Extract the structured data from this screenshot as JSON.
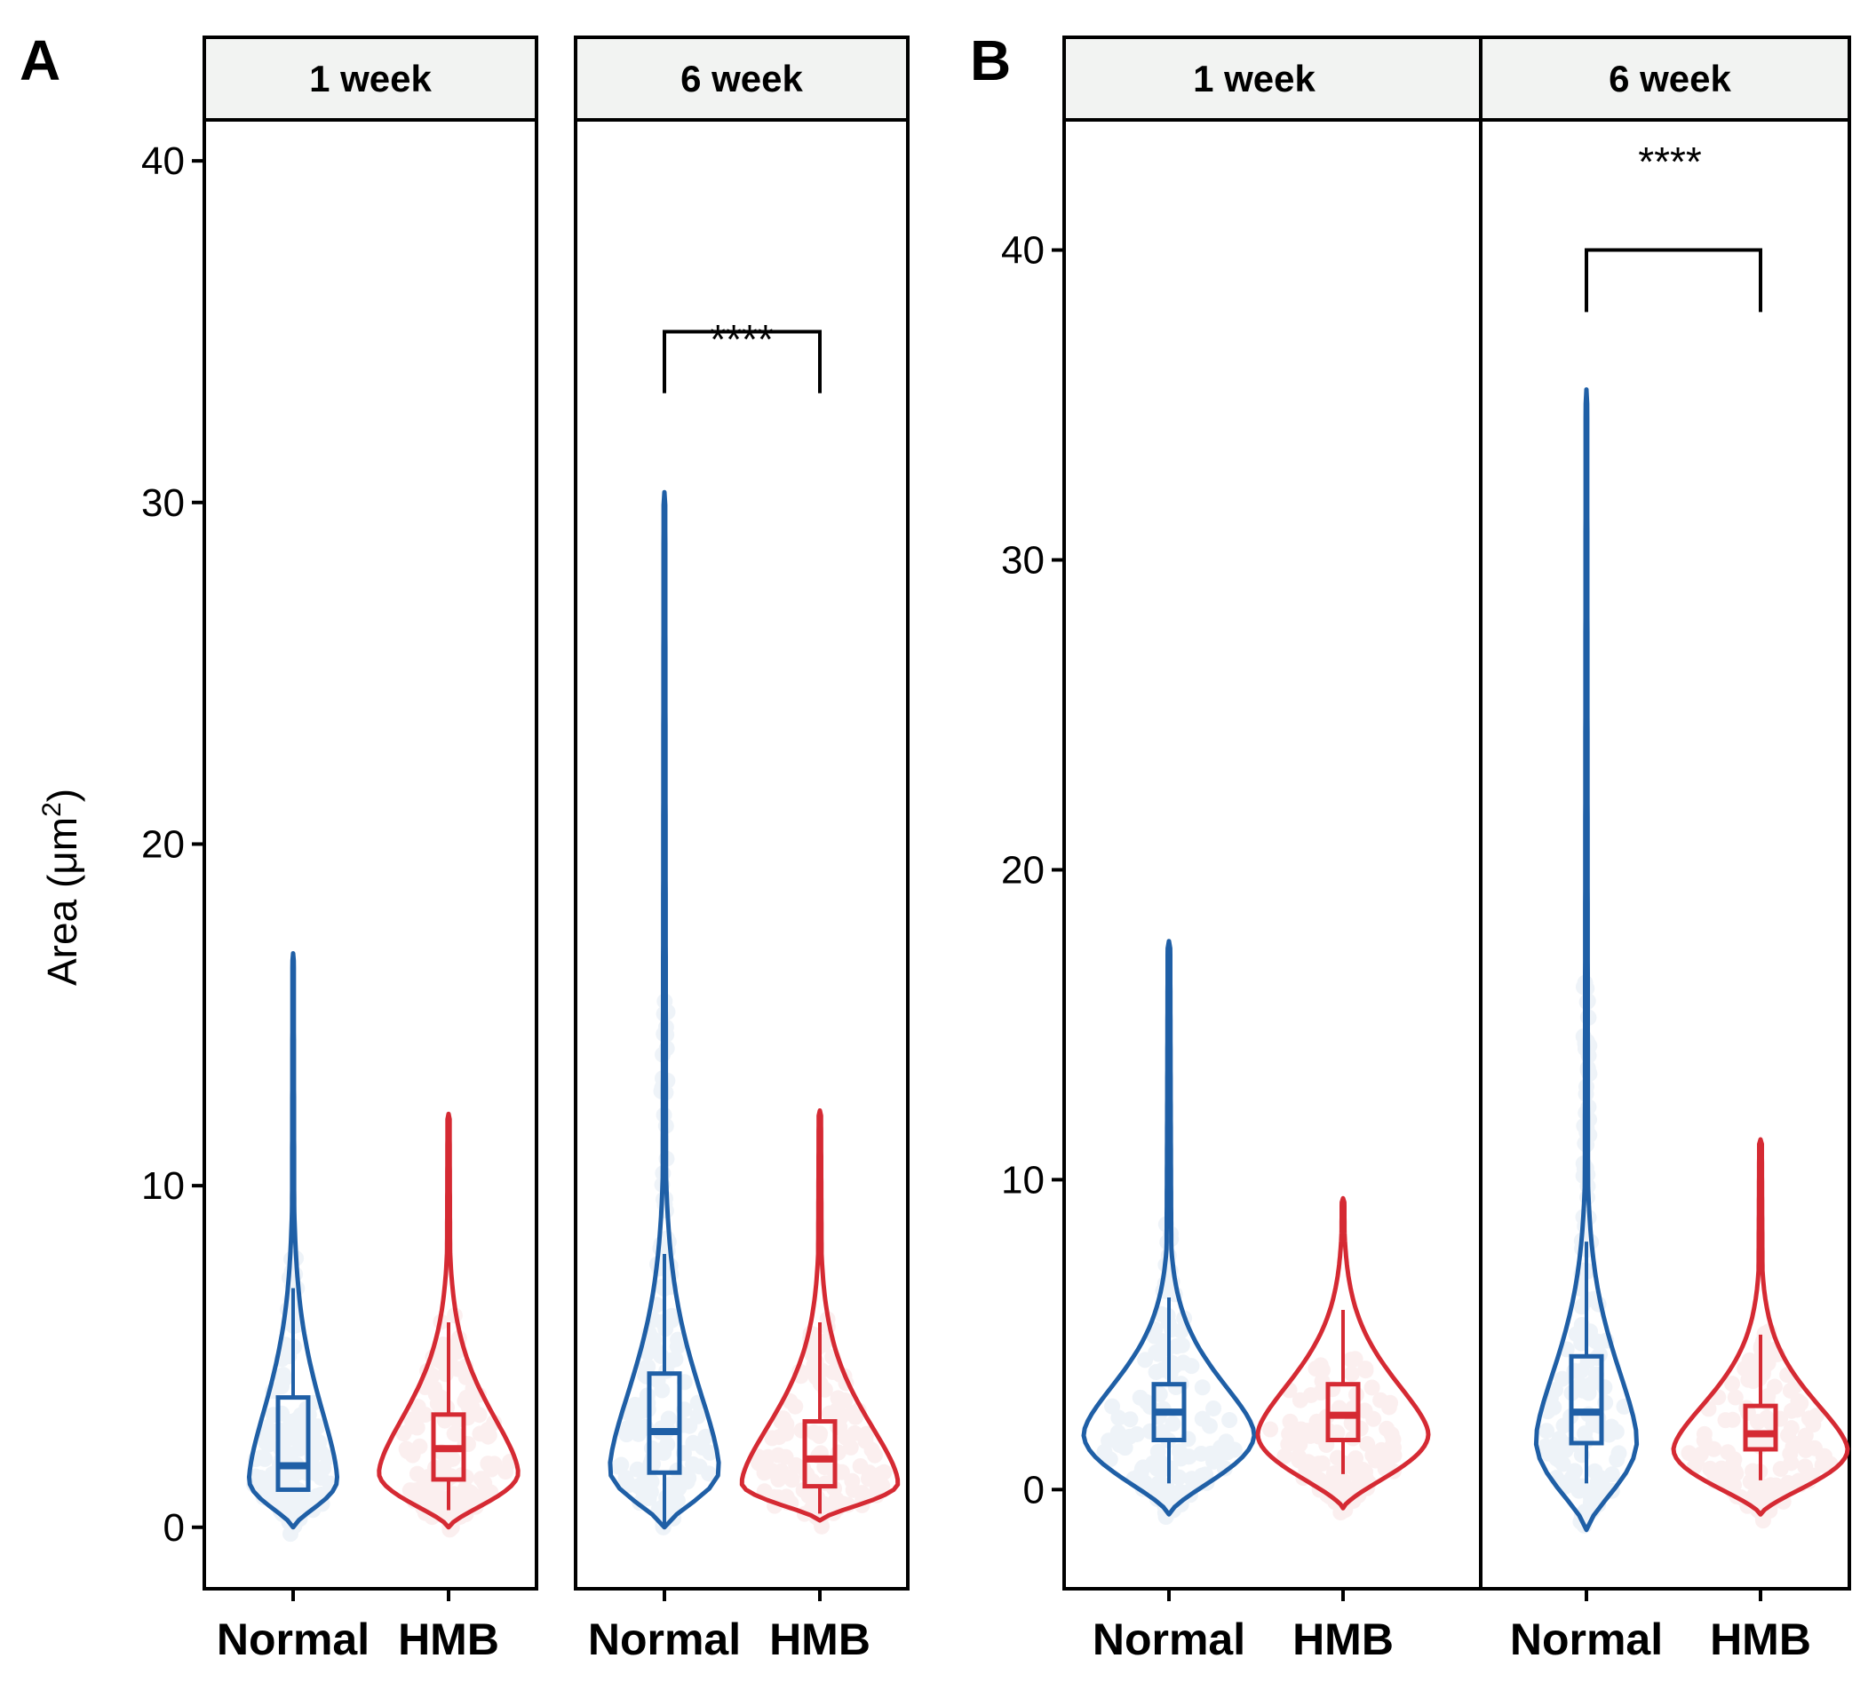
{
  "colors": {
    "Normal": "#1f5fa6",
    "HMB": "#d52a33",
    "strip_bg": "#f2f3f2"
  },
  "chart_data": {
    "type": "violin",
    "ylabel": "Area (μm",
    "ylabel_superscript": "2",
    "ylabel_close": ")",
    "categories": [
      "Normal",
      "HMB"
    ],
    "panels": [
      {
        "label": "A",
        "ylim": [
          -1.8,
          41.2
        ],
        "yticks": [
          0,
          10,
          20,
          30,
          40
        ],
        "facets": [
          {
            "strip": "1 week",
            "groups": [
              {
                "name": "Normal",
                "min": 0.0,
                "q1": 1.1,
                "median": 1.8,
                "q3": 3.8,
                "whisker_low": 1.1,
                "whisker_high": 7.0,
                "max": 16.8,
                "mode": 1.4,
                "bulge": 0.62
              },
              {
                "name": "HMB",
                "min": 0.0,
                "q1": 1.4,
                "median": 2.3,
                "q3": 3.3,
                "whisker_low": 0.5,
                "whisker_high": 6.0,
                "max": 12.1,
                "mode": 1.6,
                "bulge": 0.98
              }
            ],
            "significance": null
          },
          {
            "strip": "6 week",
            "groups": [
              {
                "name": "Normal",
                "min": 0.0,
                "q1": 1.6,
                "median": 2.8,
                "q3": 4.5,
                "whisker_low": 0.0,
                "whisker_high": 8.0,
                "max": 30.3,
                "mode": 1.7,
                "bulge": 0.7
              },
              {
                "name": "HMB",
                "min": 0.2,
                "q1": 1.2,
                "median": 2.0,
                "q3": 3.1,
                "whisker_low": 0.4,
                "whisker_high": 6.0,
                "max": 12.2,
                "mode": 1.3,
                "bulge": 1.0
              }
            ],
            "significance": {
              "label": "****",
              "y_top": 35.0,
              "y_bottom": 33.2
            }
          }
        ]
      },
      {
        "label": "B",
        "ylim": [
          -3.2,
          44.2
        ],
        "yticks": [
          0,
          10,
          20,
          30,
          40
        ],
        "facets": [
          {
            "strip": "1 week",
            "groups": [
              {
                "name": "Normal",
                "min": -0.8,
                "q1": 1.6,
                "median": 2.5,
                "q3": 3.4,
                "whisker_low": 0.2,
                "whisker_high": 6.2,
                "max": 17.7,
                "mode": 1.8,
                "bulge": 0.98
              },
              {
                "name": "HMB",
                "min": -0.6,
                "q1": 1.6,
                "median": 2.4,
                "q3": 3.4,
                "whisker_low": 0.5,
                "whisker_high": 5.8,
                "max": 9.4,
                "mode": 1.8,
                "bulge": 0.98
              }
            ],
            "significance": null
          },
          {
            "strip": "6 week",
            "groups": [
              {
                "name": "Normal",
                "min": -1.3,
                "q1": 1.5,
                "median": 2.5,
                "q3": 4.3,
                "whisker_low": 0.2,
                "whisker_high": 8.0,
                "max": 35.5,
                "mode": 1.6,
                "bulge": 0.58
              },
              {
                "name": "HMB",
                "min": -0.8,
                "q1": 1.3,
                "median": 1.8,
                "q3": 2.7,
                "whisker_low": 0.3,
                "whisker_high": 5.0,
                "max": 11.3,
                "mode": 1.3,
                "bulge": 1.0
              }
            ],
            "significance": {
              "label": "****",
              "y_top": 40.0,
              "y_bottom": 38.0
            }
          }
        ]
      }
    ]
  }
}
